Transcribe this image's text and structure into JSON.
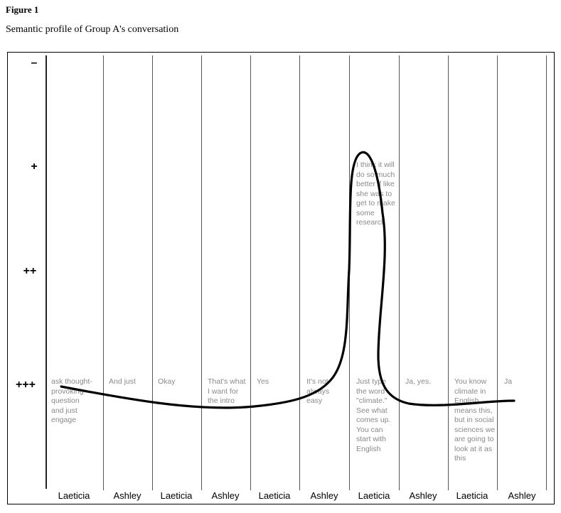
{
  "figure": {
    "label": "Figure 1",
    "caption": "Semantic profile of Group A's conversation"
  },
  "y_axis": {
    "levels": [
      {
        "label": "–"
      },
      {
        "label": "+"
      },
      {
        "label": "++"
      },
      {
        "label": "+++"
      }
    ]
  },
  "columns": [
    {
      "speaker": "Laeticia",
      "utterance": "ask thought-provoking question and just engage"
    },
    {
      "speaker": "Ashley",
      "utterance": "And just"
    },
    {
      "speaker": "Laeticia",
      "utterance": "Okay"
    },
    {
      "speaker": "Ashley",
      "utterance": "That's what I want for the intro"
    },
    {
      "speaker": "Laeticia",
      "utterance": "Yes"
    },
    {
      "speaker": "Ashley",
      "utterance": "It's not always easy"
    },
    {
      "speaker": "Laeticia",
      "utterance": "Just type the word \"climate.\" See what comes up. You can start with English",
      "upper_utterance": "I think it will do so much better if like she was to get to make some research"
    },
    {
      "speaker": "Ashley",
      "utterance": "Ja, yes."
    },
    {
      "speaker": "Laeticia",
      "utterance": "You know climate in English means this, but in social sciences we are going to look at it as this"
    },
    {
      "speaker": "Ashley",
      "utterance": "Ja"
    }
  ],
  "colors": {
    "curve": "#000000",
    "utterance_text": "#8a8a8a",
    "grid": "#555555"
  }
}
